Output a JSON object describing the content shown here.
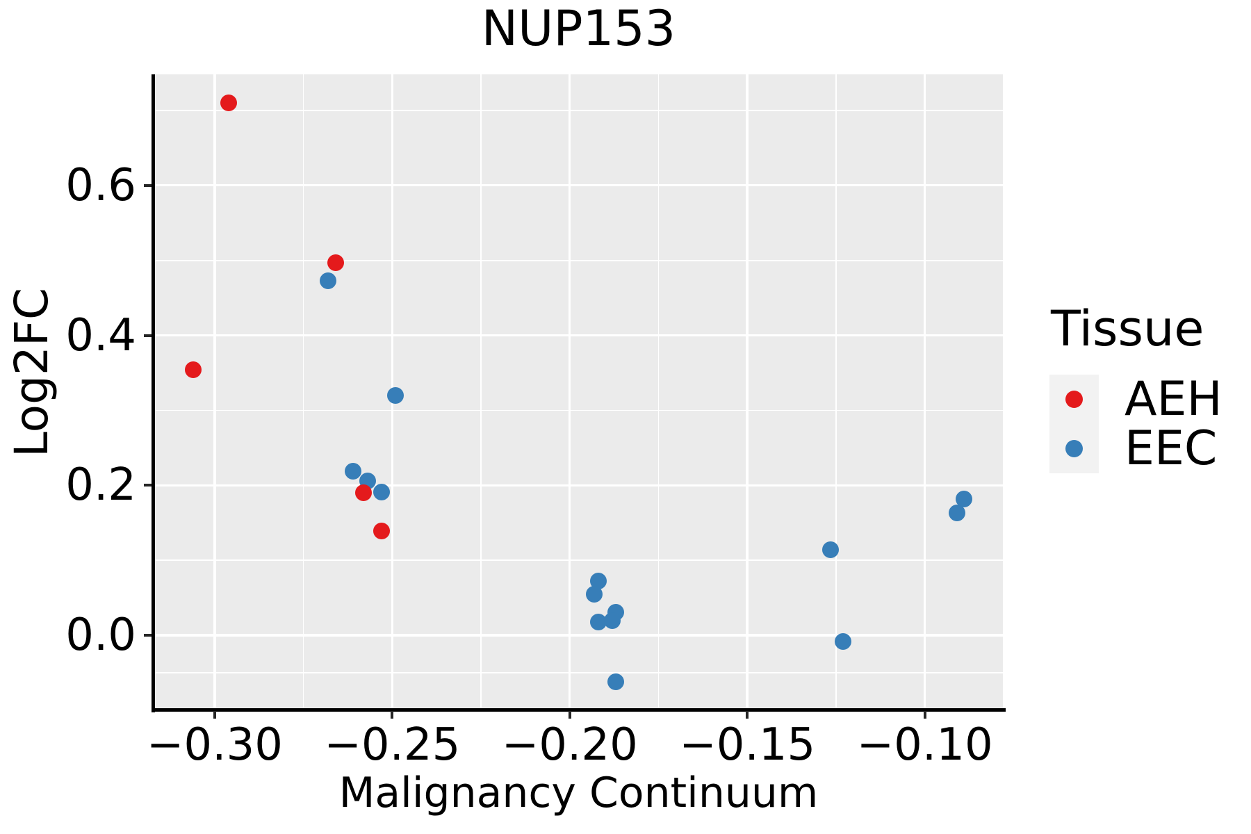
{
  "chart_data": {
    "type": "scatter",
    "title": "NUP153",
    "xlabel": "Malignancy Continuum",
    "ylabel": "Log2FC",
    "xlim": [
      -0.317,
      -0.078
    ],
    "ylim": [
      -0.099,
      0.748
    ],
    "grid": "on",
    "panel_bg": "#EBEBEB",
    "grid_color": "#FFFFFF",
    "x_ticks": [
      {
        "v": -0.3,
        "label": "−0.30"
      },
      {
        "v": -0.25,
        "label": "−0.25"
      },
      {
        "v": -0.2,
        "label": "−0.20"
      },
      {
        "v": -0.15,
        "label": "−0.15"
      },
      {
        "v": -0.1,
        "label": "−0.10"
      }
    ],
    "x_minor_ticks": [
      -0.275,
      -0.225,
      -0.175,
      -0.125
    ],
    "y_ticks": [
      {
        "v": 0.0,
        "label": "0.0"
      },
      {
        "v": 0.2,
        "label": "0.2"
      },
      {
        "v": 0.4,
        "label": "0.4"
      },
      {
        "v": 0.6,
        "label": "0.6"
      }
    ],
    "y_minor_ticks": [
      -0.05,
      0.1,
      0.3,
      0.5,
      0.7
    ],
    "legend": {
      "title": "Tissue",
      "position": "right",
      "entries": [
        {
          "name": "AEH",
          "color": "#E41A1C"
        },
        {
          "name": "EEC",
          "color": "#377EB8"
        }
      ]
    },
    "series": [
      {
        "name": "AEH",
        "color": "#E41A1C",
        "points": [
          {
            "x": -0.296,
            "y": 0.71
          },
          {
            "x": -0.306,
            "y": 0.354
          },
          {
            "x": -0.266,
            "y": 0.497
          },
          {
            "x": -0.258,
            "y": 0.19
          },
          {
            "x": -0.253,
            "y": 0.139
          }
        ]
      },
      {
        "name": "EEC",
        "color": "#377EB8",
        "points": [
          {
            "x": -0.268,
            "y": 0.473
          },
          {
            "x": -0.249,
            "y": 0.32
          },
          {
            "x": -0.261,
            "y": 0.219
          },
          {
            "x": -0.257,
            "y": 0.206
          },
          {
            "x": -0.253,
            "y": 0.191
          },
          {
            "x": -0.192,
            "y": 0.072
          },
          {
            "x": -0.193,
            "y": 0.055
          },
          {
            "x": -0.187,
            "y": 0.031
          },
          {
            "x": -0.192,
            "y": 0.018
          },
          {
            "x": -0.188,
            "y": 0.02
          },
          {
            "x": -0.187,
            "y": -0.062
          },
          {
            "x": -0.1265,
            "y": 0.114
          },
          {
            "x": -0.123,
            "y": -0.008
          },
          {
            "x": -0.089,
            "y": 0.182
          },
          {
            "x": -0.091,
            "y": 0.163
          }
        ]
      }
    ]
  }
}
